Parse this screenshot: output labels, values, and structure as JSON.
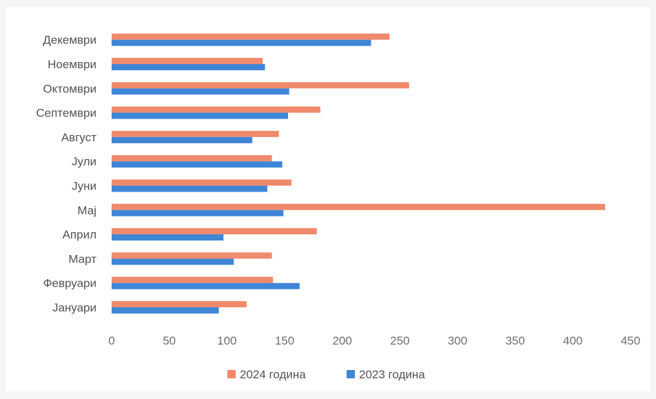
{
  "chart_data": {
    "type": "bar",
    "orientation": "horizontal",
    "categories": [
      "Декември",
      "Ноември",
      "Октомври",
      "Септември",
      "Август",
      "Јули",
      "Јуни",
      "Мај",
      "Април",
      "Март",
      "Февруари",
      "Јануари"
    ],
    "series": [
      {
        "name": "2024 година",
        "color": "#f08a6c",
        "values": [
          241,
          131,
          258,
          181,
          145,
          139,
          156,
          428,
          178,
          139,
          140,
          117
        ]
      },
      {
        "name": "2023 година",
        "color": "#3f86d6",
        "values": [
          225,
          133,
          154,
          153,
          122,
          148,
          135,
          149,
          97,
          106,
          163,
          93
        ]
      }
    ],
    "xlim": [
      0,
      450
    ],
    "xticks": [
      0,
      50,
      100,
      150,
      200,
      250,
      300,
      350,
      400,
      450
    ],
    "grid": false,
    "legend": "bottom"
  }
}
